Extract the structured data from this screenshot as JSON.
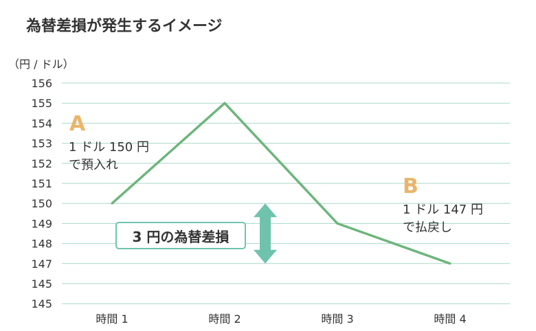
{
  "chart_data": {
    "type": "line",
    "title": "為替差損が発生するイメージ",
    "ylabel": "（円 / ドル）",
    "categories": [
      "時間 1",
      "時間 2",
      "時間 3",
      "時間 4"
    ],
    "y_tick_labels": [
      "156",
      "155",
      "154",
      "153",
      "152",
      "151",
      "150",
      "149",
      "148",
      "147",
      "145",
      "145"
    ],
    "series": [
      {
        "values": [
          150,
          155,
          149,
          147
        ]
      }
    ],
    "ylim": [
      145,
      156
    ],
    "grid": true,
    "colors": {
      "line": "#6db57b",
      "grid": "#a9d7c8",
      "arrow": "#6fc3ad",
      "letter": "#eab56a"
    },
    "annotations": {
      "a": {
        "letter": "A",
        "line1": "1 ドル 150 円",
        "line2": "で預入れ"
      },
      "b": {
        "letter": "B",
        "line1": "1 ドル 147 円",
        "line2": "で払戻し"
      },
      "loss": "3 円の為替差損"
    }
  }
}
